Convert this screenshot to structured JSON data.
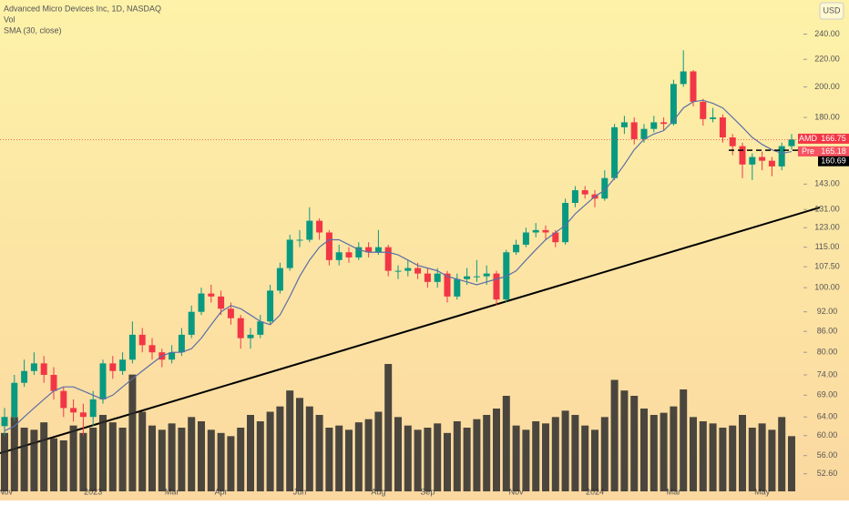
{
  "chart_data": {
    "type": "candlestick",
    "title": "Advanced Micro Devices Inc, 1D, NASDAQ",
    "volume_label": "Vol",
    "sma_label": "SMA (30, close)",
    "currency": "USD",
    "log_scale": true,
    "ylim": [
      49.5,
      270
    ],
    "yticks": [
      {
        "value": 240,
        "label": "240.00"
      },
      {
        "value": 220,
        "label": "220.00"
      },
      {
        "value": 200,
        "label": "200.00"
      },
      {
        "value": 180,
        "label": "180.00"
      },
      {
        "value": 143,
        "label": "143.00"
      },
      {
        "value": 131,
        "label": "131.00"
      },
      {
        "value": 123,
        "label": "123.00"
      },
      {
        "value": 115,
        "label": "115.00"
      },
      {
        "value": 107.5,
        "label": "107.50"
      },
      {
        "value": 100,
        "label": "100.00"
      },
      {
        "value": 92,
        "label": "92.00"
      },
      {
        "value": 86,
        "label": "86.00"
      },
      {
        "value": 80,
        "label": "80.00"
      },
      {
        "value": 74,
        "label": "74.00"
      },
      {
        "value": 69,
        "label": "69.00"
      },
      {
        "value": 64,
        "label": "64.00"
      },
      {
        "value": 60,
        "label": "60.00"
      },
      {
        "value": 56,
        "label": "56.00"
      },
      {
        "value": 52.6,
        "label": "52.60"
      }
    ],
    "categories": [
      "Nov",
      null,
      null,
      null,
      null,
      null,
      null,
      null,
      null,
      "2023",
      null,
      null,
      null,
      null,
      null,
      null,
      null,
      "Mar",
      null,
      null,
      null,
      null,
      "Apr",
      null,
      null,
      null,
      null,
      null,
      null,
      null,
      "Jun",
      null,
      null,
      null,
      null,
      null,
      null,
      null,
      "Aug",
      null,
      null,
      null,
      null,
      "Sep",
      null,
      null,
      null,
      null,
      null,
      null,
      null,
      null,
      "Nov",
      null,
      null,
      null,
      null,
      null,
      null,
      null,
      "2024",
      null,
      null,
      null,
      null,
      null,
      null,
      null,
      "Mar",
      null,
      null,
      null,
      null,
      null,
      null,
      null,
      null,
      "May",
      null,
      null,
      null
    ],
    "up_color": "#089981",
    "down_color": "#f23645",
    "open": [
      62,
      64,
      72,
      75,
      77,
      74,
      70,
      66,
      65,
      64,
      68,
      77,
      75,
      78,
      85,
      82,
      80,
      78,
      80,
      85,
      92,
      98,
      97,
      93,
      90,
      84,
      85,
      89,
      99,
      107,
      118,
      118,
      126,
      121,
      110,
      113,
      111,
      115,
      113,
      115,
      106,
      106,
      107,
      105,
      102,
      105,
      97,
      103,
      104,
      104,
      105,
      96,
      113,
      116,
      121,
      122,
      121,
      117,
      134,
      140,
      138,
      136,
      146,
      174,
      177,
      167,
      173,
      177,
      176,
      202,
      211,
      190,
      179,
      180,
      168,
      163,
      153,
      157,
      155,
      152,
      163
    ],
    "high": [
      66,
      74,
      78,
      80,
      79,
      76,
      71,
      68,
      67,
      70,
      78,
      79,
      80,
      89,
      87,
      84,
      81,
      82,
      87,
      94,
      100,
      101,
      99,
      95,
      91,
      87,
      91,
      101,
      109,
      120,
      122,
      132,
      127,
      122,
      116,
      115,
      117,
      117,
      122,
      116,
      108,
      110,
      109,
      107,
      107,
      106,
      105,
      107,
      110,
      108,
      106,
      114,
      118,
      123,
      125,
      124,
      122,
      136,
      142,
      142,
      140,
      150,
      176,
      181,
      180,
      176,
      181,
      180,
      205,
      227,
      212,
      192,
      186,
      182,
      170,
      165,
      159,
      160,
      157,
      165,
      170
    ],
    "low": [
      60,
      63,
      71,
      74,
      72,
      68,
      64,
      63,
      60,
      62,
      67,
      73,
      74,
      77,
      80,
      78,
      76,
      77,
      79,
      84,
      91,
      95,
      91,
      88,
      81,
      81,
      84,
      88,
      98,
      106,
      115,
      117,
      118,
      108,
      108,
      109,
      110,
      111,
      112,
      104,
      103,
      104,
      103,
      100,
      100,
      95,
      96,
      101,
      102,
      101,
      94,
      95,
      112,
      115,
      119,
      118,
      115,
      116,
      132,
      136,
      132,
      135,
      145,
      170,
      164,
      165,
      171,
      172,
      175,
      200,
      187,
      175,
      177,
      165,
      158,
      146,
      145,
      150,
      147,
      150,
      161
    ],
    "close": [
      64,
      72,
      75,
      77,
      74,
      70,
      66,
      65,
      64,
      68,
      77,
      75,
      78,
      85,
      82,
      80,
      78,
      80,
      85,
      92,
      98,
      97,
      93,
      90,
      84,
      85,
      89,
      99,
      107,
      118,
      118,
      126,
      121,
      110,
      113,
      111,
      115,
      113,
      115,
      106,
      106,
      107,
      105,
      102,
      105,
      97,
      103,
      104,
      104,
      105,
      96,
      113,
      116,
      121,
      122,
      121,
      117,
      134,
      140,
      138,
      136,
      146,
      174,
      177,
      167,
      173,
      177,
      176,
      202,
      211,
      190,
      179,
      180,
      168,
      163,
      153,
      157,
      155,
      152,
      163,
      166.75
    ],
    "sma": [
      61,
      62,
      64,
      66,
      68,
      70,
      71,
      71,
      70,
      69,
      68,
      69,
      71,
      73,
      75,
      77,
      79,
      80,
      80,
      81,
      84,
      88,
      92,
      94,
      93,
      91,
      89,
      88,
      91,
      97,
      104,
      110,
      115,
      118,
      118,
      116,
      114,
      113,
      113,
      113,
      112,
      110,
      108,
      107,
      106,
      104,
      103,
      102,
      101,
      102,
      103,
      104,
      106,
      110,
      114,
      118,
      121,
      124,
      129,
      133,
      137,
      140,
      146,
      153,
      161,
      167,
      170,
      172,
      178,
      186,
      190,
      191,
      189,
      186,
      180,
      174,
      168,
      164,
      161,
      159,
      160
    ],
    "sma_color": "#5b6fa6",
    "volume": [
      55,
      70,
      60,
      58,
      65,
      50,
      48,
      62,
      55,
      60,
      72,
      65,
      60,
      110,
      75,
      62,
      58,
      64,
      60,
      70,
      66,
      58,
      55,
      52,
      60,
      72,
      66,
      75,
      80,
      95,
      88,
      80,
      72,
      60,
      62,
      58,
      65,
      68,
      75,
      120,
      70,
      62,
      58,
      60,
      64,
      55,
      66,
      60,
      68,
      72,
      78,
      90,
      62,
      58,
      66,
      64,
      70,
      76,
      72,
      62,
      58,
      70,
      105,
      95,
      90,
      78,
      72,
      74,
      80,
      96,
      70,
      66,
      64,
      60,
      62,
      72,
      60,
      64,
      58,
      70,
      52
    ],
    "volume_color": "#2b2b2b",
    "last_label": "AMD",
    "last_price": 166.75,
    "last_color": "#f23645",
    "pre_label": "Pre",
    "pre_price": 165.18,
    "pre_color": "#f7525f",
    "level_price": 160.69
  }
}
